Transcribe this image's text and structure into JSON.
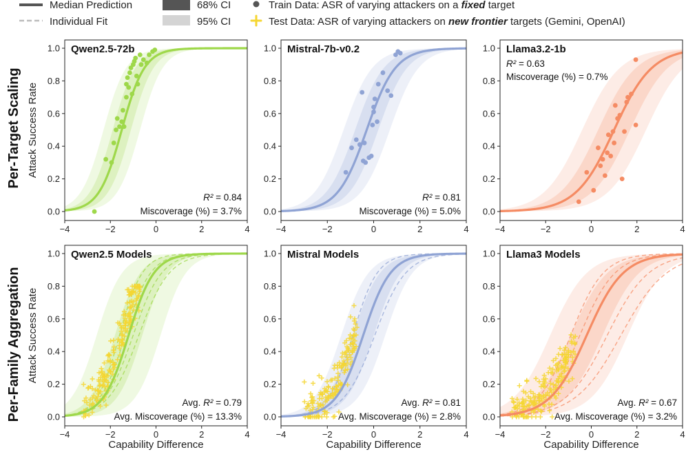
{
  "legend": {
    "median": "Median Prediction",
    "individual": "Individual Fit",
    "ci68": "68% CI",
    "ci95": "95% CI",
    "train_prefix": "Train Data: ASR of varying attackers on a ",
    "train_emph": "fixed",
    "train_suffix": " target",
    "test_prefix": "Test Data: ASR of varying attackers on ",
    "test_emph": "new frontier",
    "test_suffix": " targets (Gemini, OpenAI)"
  },
  "rows": [
    "Per-Target Scaling",
    "Per-Family Aggregation"
  ],
  "colors": {
    "qwen": "#9ed84a",
    "mistral": "#8fa3d4",
    "llama": "#f58b63",
    "test": "#f5d631",
    "train_marker": "#555555"
  },
  "chart_data": [
    {
      "type": "scatter",
      "id": "qwen-target",
      "title": "Qwen2.5-72b",
      "xlabel": "",
      "ylabel": "Attack Success Rate",
      "xlim": [
        -4,
        4
      ],
      "ylim": [
        0,
        1
      ],
      "xticks": [
        "−4",
        "−2",
        "0",
        "2",
        "4"
      ],
      "yticks": [
        "0.0",
        "0.2",
        "0.4",
        "0.6",
        "0.8",
        "1.0"
      ],
      "fit": {
        "center": -1.5,
        "slope": 2.0
      },
      "ci68": [
        -1.9,
        -1.1
      ],
      "ci95": [
        -2.3,
        -0.7
      ],
      "ann1_prefix": "R² = ",
      "ann1_value": "0.84",
      "ann2_prefix": "Miscoverage (%) = ",
      "ann2_value": "3.7%",
      "annotation_position": "bottom-right",
      "points": {
        "x": [
          -2.7,
          -2.2,
          -1.95,
          -1.85,
          -1.75,
          -1.7,
          -1.6,
          -1.5,
          -1.45,
          -1.4,
          -1.3,
          -1.3,
          -1.25,
          -1.2,
          -1.15,
          -1.1,
          -1.05,
          -1.0,
          -0.95,
          -0.9,
          -0.85,
          -0.8,
          -0.7,
          -0.65,
          -0.55,
          -0.4,
          -0.3,
          -0.15,
          -0.05
        ],
        "y": [
          0.0,
          0.32,
          0.3,
          0.42,
          0.5,
          0.57,
          0.52,
          0.55,
          0.62,
          0.52,
          0.7,
          0.78,
          0.82,
          0.76,
          0.85,
          0.88,
          0.72,
          0.9,
          0.92,
          0.94,
          0.83,
          0.78,
          0.96,
          0.9,
          0.93,
          0.91,
          0.96,
          0.98,
          0.99
        ]
      }
    },
    {
      "type": "scatter",
      "id": "mistral-target",
      "title": "Mistral-7b-v0.2",
      "xlabel": "",
      "ylabel": "",
      "xlim": [
        -4,
        4
      ],
      "ylim": [
        0,
        1
      ],
      "xticks": [
        "−4",
        "−2",
        "0",
        "2",
        "4"
      ],
      "yticks": [
        "0.0",
        "0.2",
        "0.4",
        "0.6",
        "0.8",
        "1.0"
      ],
      "fit": {
        "center": -0.3,
        "slope": 1.6
      },
      "ci68": [
        -0.8,
        0.2
      ],
      "ci95": [
        -1.3,
        0.7
      ],
      "ann1_prefix": "R² = ",
      "ann1_value": "0.81",
      "ann2_prefix": "Miscoverage (%) = ",
      "ann2_value": "5.0%",
      "annotation_position": "bottom-right",
      "points": {
        "x": [
          -1.2,
          -0.95,
          -0.75,
          -0.6,
          -0.5,
          -0.45,
          -0.4,
          -0.35,
          -0.2,
          -0.1,
          -0.05,
          0.0,
          0.0,
          0.05,
          0.15,
          0.2,
          0.4,
          0.6,
          0.75,
          0.95,
          1.05,
          1.15
        ],
        "y": [
          0.24,
          0.39,
          0.44,
          0.41,
          0.73,
          0.31,
          0.42,
          0.3,
          0.33,
          0.34,
          0.53,
          0.61,
          0.64,
          0.69,
          0.55,
          0.78,
          0.85,
          0.74,
          0.71,
          0.96,
          0.98,
          0.97
        ]
      }
    },
    {
      "type": "scatter",
      "id": "llama-target",
      "title": "Llama3.2-1b",
      "xlabel": "",
      "ylabel": "",
      "xlim": [
        -4,
        4
      ],
      "ylim": [
        0,
        1
      ],
      "xticks": [
        "−4",
        "−2",
        "0",
        "2",
        "4"
      ],
      "yticks": [
        "0.0",
        "0.2",
        "0.4",
        "0.6",
        "0.8",
        "1.0"
      ],
      "fit": {
        "center": 1.0,
        "slope": 1.2
      },
      "ci68": [
        0.3,
        1.7
      ],
      "ci95": [
        -0.4,
        2.4
      ],
      "ann1_prefix": "R² = ",
      "ann1_value": "0.63",
      "ann2_prefix": "Miscoverage (%) = ",
      "ann2_value": "0.7%",
      "annotation_position": "top-left",
      "points": {
        "x": [
          -0.55,
          -0.2,
          0.1,
          0.3,
          0.4,
          0.5,
          0.6,
          0.7,
          0.75,
          0.85,
          0.95,
          1.0,
          1.05,
          1.15,
          1.25,
          1.35,
          1.45,
          1.55,
          1.6,
          1.75,
          1.95,
          1.95
        ],
        "y": [
          0.06,
          0.24,
          0.13,
          0.39,
          0.28,
          0.32,
          0.22,
          0.36,
          0.47,
          0.34,
          0.49,
          0.42,
          0.65,
          0.57,
          0.59,
          0.2,
          0.49,
          0.67,
          0.7,
          0.72,
          0.53,
          0.93
        ]
      }
    },
    {
      "type": "scatter",
      "id": "qwen-family",
      "title": "Qwen2.5 Models",
      "xlabel": "Capability Difference",
      "ylabel": "Attack Success Rate",
      "xlim": [
        -4,
        4
      ],
      "ylim": [
        0,
        1
      ],
      "xticks": [
        "−4",
        "−2",
        "0",
        "2",
        "4"
      ],
      "yticks": [
        "0.0",
        "0.2",
        "0.4",
        "0.6",
        "0.8",
        "1.0"
      ],
      "fit": {
        "center": -1.2,
        "slope": 1.8
      },
      "individual_fits": [
        {
          "center": -1.6,
          "slope": 2.0
        },
        {
          "center": -1.35,
          "slope": 1.8
        },
        {
          "center": -1.0,
          "slope": 1.6
        },
        {
          "center": -0.75,
          "slope": 1.5
        }
      ],
      "ci68": [
        -1.8,
        -0.6
      ],
      "ci95": [
        -2.6,
        0.2
      ],
      "ann1_prefix": "Avg. R² = ",
      "ann1_value": "0.79",
      "ann2_prefix": "Avg. Miscoverage (%) = ",
      "ann2_value": "13.3%",
      "annotation_position": "bottom-right",
      "test_cloud": {
        "count": 190,
        "x_range": [
          -3.2,
          -0.7
        ],
        "note": "test points follow the median curve with noise"
      }
    },
    {
      "type": "scatter",
      "id": "mistral-family",
      "title": "Mistral Models",
      "xlabel": "Capability Difference",
      "ylabel": "",
      "xlim": [
        -4,
        4
      ],
      "ylim": [
        0,
        1
      ],
      "xticks": [
        "−4",
        "−2",
        "0",
        "2",
        "4"
      ],
      "yticks": [
        "0.0",
        "0.2",
        "0.4",
        "0.6",
        "0.8",
        "1.0"
      ],
      "fit": {
        "center": -0.45,
        "slope": 1.7
      },
      "individual_fits": [
        {
          "center": -0.9,
          "slope": 1.9
        },
        {
          "center": 0.05,
          "slope": 1.5
        }
      ],
      "ci68": [
        -0.9,
        0.0
      ],
      "ci95": [
        -1.4,
        0.5
      ],
      "ann1_prefix": "Avg. R² = ",
      "ann1_value": "0.81",
      "ann2_prefix": "Avg. Miscoverage (%) = ",
      "ann2_value": "2.8%",
      "annotation_position": "bottom-right",
      "test_cloud": {
        "count": 170,
        "x_range": [
          -3.0,
          -0.7
        ],
        "note": "test points follow the median curve with noise"
      }
    },
    {
      "type": "scatter",
      "id": "llama-family",
      "title": "Llama3 Models",
      "xlabel": "Capability Difference",
      "ylabel": "",
      "xlim": [
        -4,
        4
      ],
      "ylim": [
        0,
        1
      ],
      "xticks": [
        "−4",
        "−2",
        "0",
        "2",
        "4"
      ],
      "yticks": [
        "0.0",
        "0.2",
        "0.4",
        "0.6",
        "0.8",
        "1.0"
      ],
      "fit": {
        "center": -0.2,
        "slope": 1.25
      },
      "individual_fits": [
        {
          "center": -0.9,
          "slope": 1.4
        },
        {
          "center": -0.5,
          "slope": 1.3
        },
        {
          "center": 0.7,
          "slope": 1.1
        },
        {
          "center": 1.3,
          "slope": 1.0
        }
      ],
      "ci68": [
        -0.9,
        0.5
      ],
      "ci95": [
        -1.8,
        1.6
      ],
      "ann1_prefix": "Avg. R² = ",
      "ann1_value": "0.67",
      "ann2_prefix": "Avg. Miscoverage (%) = ",
      "ann2_value": "3.2%",
      "annotation_position": "bottom-right",
      "test_cloud": {
        "count": 190,
        "x_range": [
          -3.5,
          -0.7
        ],
        "note": "test points follow the median curve with noise"
      }
    }
  ]
}
